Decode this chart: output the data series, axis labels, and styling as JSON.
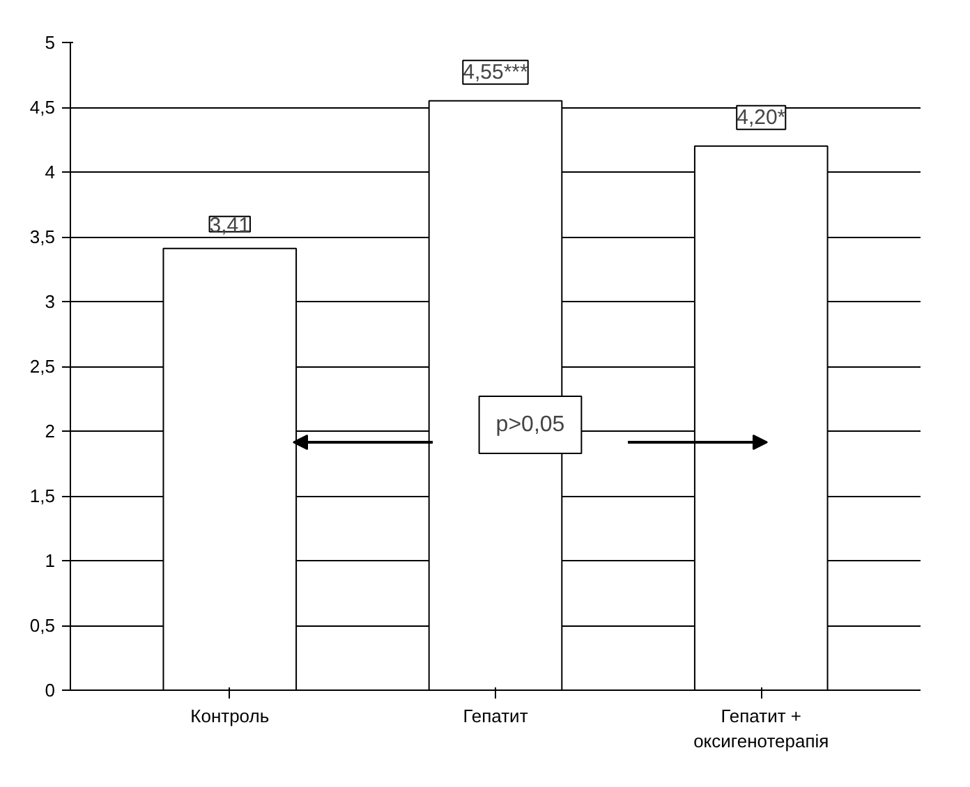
{
  "chart_data": {
    "type": "bar",
    "categories": [
      "Контроль",
      "Гепатит",
      "Гепатит +\nоксигенотерапія"
    ],
    "values": [
      3.41,
      4.55,
      4.2
    ],
    "colors": [
      "#ffffff",
      "#ffffff",
      "#ffffff"
    ],
    "value_labels": [
      "3,41",
      "4,55***",
      "4,20*"
    ],
    "ylim": [
      0,
      5
    ],
    "yticks": [
      0,
      {
        "value": 0.5,
        "label": "0,5"
      },
      1,
      {
        "value": 1.5,
        "label": "1,5"
      },
      2,
      {
        "value": 2.5,
        "label": "2,5"
      },
      3,
      {
        "value": 3.5,
        "label": "3,5"
      },
      4,
      {
        "value": 4.5,
        "label": "4,5"
      },
      5
    ],
    "grid": "y",
    "annotations": [
      "p>0,05"
    ]
  }
}
